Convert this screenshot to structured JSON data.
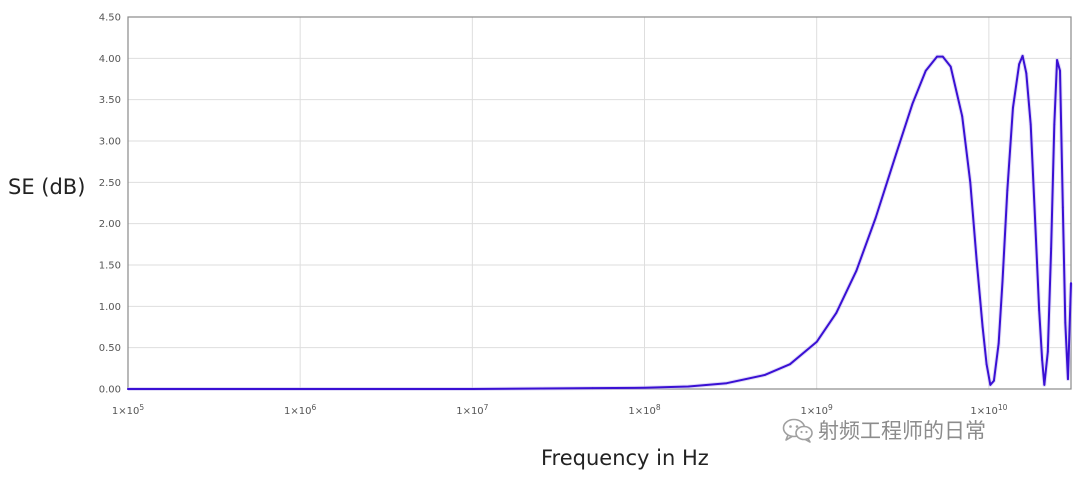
{
  "chart_data": {
    "type": "line",
    "title": "",
    "xlabel": "Frequency in Hz",
    "ylabel": "SE (dB)",
    "xscale": "log10",
    "xlim": [
      100000,
      30000000000
    ],
    "ylim": [
      0,
      4.5
    ],
    "grid": true,
    "x_ticks": [
      {
        "value": 100000,
        "mantissa": "1×10",
        "exp": "5"
      },
      {
        "value": 1000000,
        "mantissa": "1×10",
        "exp": "6"
      },
      {
        "value": 10000000,
        "mantissa": "1×10",
        "exp": "7"
      },
      {
        "value": 100000000,
        "mantissa": "1×10",
        "exp": "8"
      },
      {
        "value": 1000000000,
        "mantissa": "1×10",
        "exp": "9"
      },
      {
        "value": 10000000000,
        "mantissa": "1×10",
        "exp": "10"
      }
    ],
    "y_ticks": [
      "0.00",
      "0.50",
      "1.00",
      "1.50",
      "2.00",
      "2.50",
      "3.00",
      "3.50",
      "4.00",
      "4.50"
    ],
    "series": [
      {
        "color": "#3a10d4",
        "points": [
          [
            100000,
            0.0
          ],
          [
            10000000,
            0.0
          ],
          [
            50000000,
            0.01
          ],
          [
            100000000,
            0.015
          ],
          [
            180000000,
            0.03
          ],
          [
            300000000,
            0.07
          ],
          [
            500000000,
            0.17
          ],
          [
            700000000,
            0.3
          ],
          [
            1000000000,
            0.57
          ],
          [
            1300000000,
            0.92
          ],
          [
            1700000000,
            1.43
          ],
          [
            2200000000,
            2.07
          ],
          [
            2900000000,
            2.85
          ],
          [
            3600000000,
            3.45
          ],
          [
            4300000000,
            3.85
          ],
          [
            5000000000,
            4.02
          ],
          [
            5400000000,
            4.02
          ],
          [
            6000000000,
            3.9
          ],
          [
            7000000000,
            3.3
          ],
          [
            7800000000,
            2.5
          ],
          [
            8500000000,
            1.55
          ],
          [
            9200000000,
            0.75
          ],
          [
            9700000000,
            0.3
          ],
          [
            10200000000,
            0.05
          ],
          [
            10700000000,
            0.1
          ],
          [
            11400000000,
            0.55
          ],
          [
            12000000000,
            1.3
          ],
          [
            12800000000,
            2.4
          ],
          [
            13800000000,
            3.4
          ],
          [
            15000000000,
            3.93
          ],
          [
            15700000000,
            4.03
          ],
          [
            16500000000,
            3.82
          ],
          [
            17500000000,
            3.2
          ],
          [
            18600000000,
            2.0
          ],
          [
            19600000000,
            0.95
          ],
          [
            20400000000,
            0.35
          ],
          [
            21000000000,
            0.05
          ],
          [
            22000000000,
            0.45
          ],
          [
            23000000000,
            1.7
          ],
          [
            24000000000,
            3.2
          ],
          [
            24900000000,
            3.98
          ],
          [
            25900000000,
            3.85
          ],
          [
            26900000000,
            2.2
          ],
          [
            27800000000,
            0.8
          ],
          [
            28800000000,
            0.12
          ],
          [
            30000000000,
            1.28
          ]
        ]
      }
    ]
  },
  "watermark": {
    "text": "射频工程师的日常",
    "icon": "wechat-icon"
  }
}
